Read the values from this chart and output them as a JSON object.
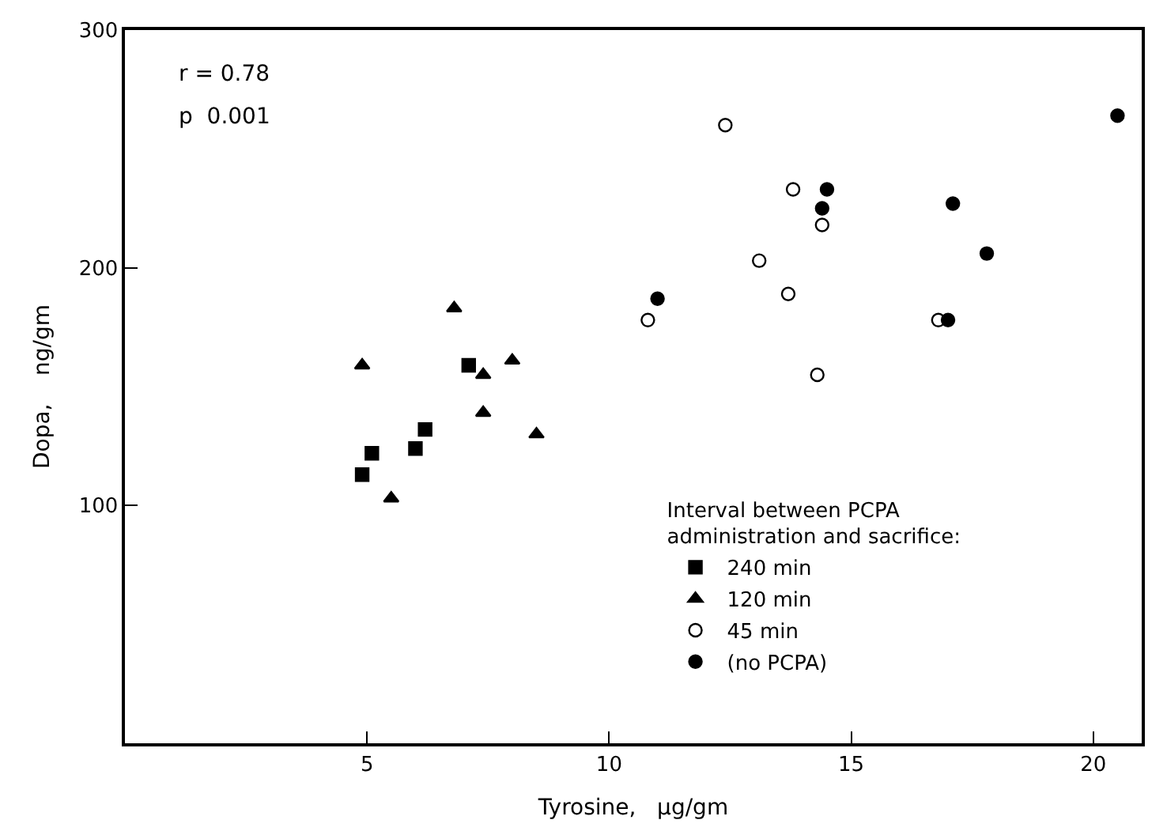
{
  "chart_data": {
    "type": "scatter",
    "xlabel": "Tyrosine,   μg/gm",
    "ylabel": "Dopa,    ng/gm",
    "legend_title": "Interval between PCPA\nadministration and sacrifice:",
    "annotations": [
      "r = 0.78",
      "p  0.001"
    ],
    "xlim": [
      0,
      21
    ],
    "xticks": [
      5,
      10,
      15,
      20
    ],
    "ylim": [
      0,
      300
    ],
    "yticks": [
      100,
      200,
      300
    ],
    "legend": "bottom right",
    "series": [
      {
        "name": "240 min",
        "marker": "square",
        "color": "#000000",
        "x": [
          7.1,
          6.2,
          5.1,
          6.0,
          4.9
        ],
        "values": [
          159,
          132,
          122,
          124,
          113
        ]
      },
      {
        "name": "120 min",
        "marker": "triangle",
        "color": "#000000",
        "x": [
          6.8,
          4.9,
          7.4,
          8.0,
          7.4,
          8.5,
          5.5
        ],
        "values": [
          183,
          159,
          155,
          161,
          139,
          130,
          103
        ]
      },
      {
        "name": "45 min",
        "marker": "circle",
        "color": "#ffffff",
        "x": [
          12.4,
          13.8,
          14.4,
          13.1,
          13.7,
          10.8,
          16.8,
          14.3
        ],
        "values": [
          260,
          233,
          218,
          203,
          189,
          178,
          178,
          155
        ]
      },
      {
        "name": "(no PCPA)",
        "marker": "circle",
        "color": "#000000",
        "x": [
          20.5,
          14.5,
          14.4,
          17.1,
          17.8,
          11.0,
          17.0
        ],
        "values": [
          264,
          233,
          225,
          227,
          206,
          187,
          178
        ]
      }
    ]
  }
}
